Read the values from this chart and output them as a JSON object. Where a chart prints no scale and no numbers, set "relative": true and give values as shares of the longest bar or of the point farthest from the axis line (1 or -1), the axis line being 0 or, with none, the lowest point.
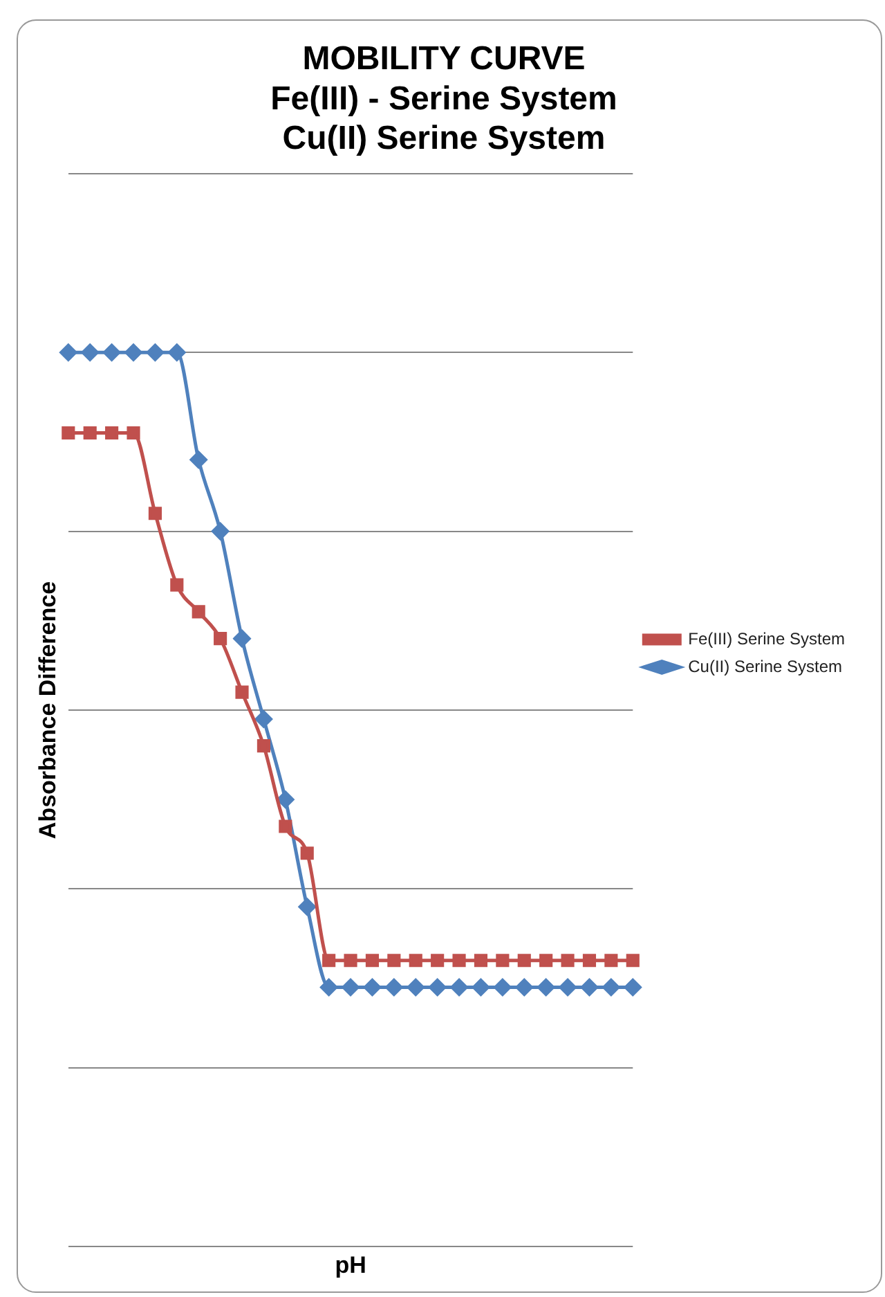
{
  "chart_data": {
    "type": "line",
    "title": "MOBILITY CURVE\nFe(III) - Serine System\nCu(II) Serine System",
    "xlabel": "pH",
    "ylabel": "Absorbance Difference",
    "relative": true,
    "grid": "y",
    "legend": "right",
    "line_style": "solid",
    "categories": [
      null,
      null,
      null,
      null,
      null,
      null,
      null,
      null,
      null,
      null,
      null,
      null,
      null,
      null,
      null,
      null,
      null,
      null,
      null,
      null,
      null,
      null,
      null,
      null,
      null,
      null,
      null
    ],
    "series": [
      {
        "name": "Fe(III) Serine System",
        "color": "#c0504d",
        "marker": "square",
        "values": [
          0.91,
          0.91,
          0.91,
          0.91,
          0.82,
          0.74,
          0.71,
          0.68,
          0.62,
          0.56,
          0.47,
          0.44,
          0.32,
          0.32,
          0.32,
          0.32,
          0.32,
          0.32,
          0.32,
          0.32,
          0.32,
          0.32,
          0.32,
          0.32,
          0.32,
          0.32,
          0.32
        ]
      },
      {
        "name": "Cu(II) Serine System",
        "color": "#4f81bd",
        "marker": "diamond",
        "values": [
          1,
          1,
          1,
          1,
          1,
          1,
          0.88,
          0.8,
          0.68,
          0.59,
          0.5,
          0.38,
          0.29,
          0.29,
          0.29,
          0.29,
          0.29,
          0.29,
          0.29,
          0.29,
          0.29,
          0.29,
          0.29,
          0.29,
          0.29,
          0.29,
          0.29
        ]
      }
    ]
  }
}
